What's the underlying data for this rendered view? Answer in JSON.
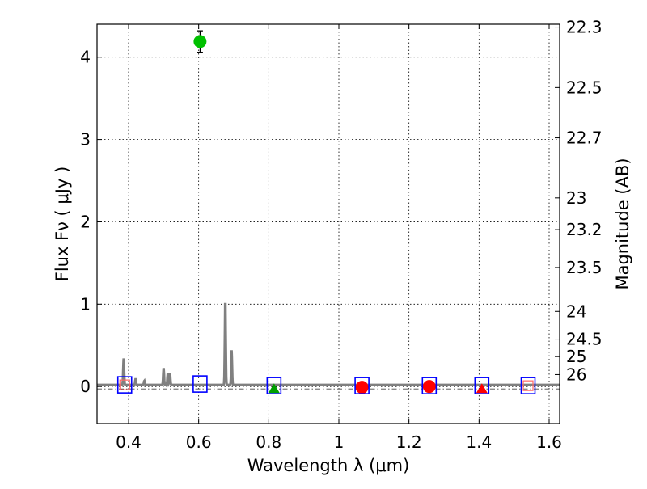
{
  "chart_data": {
    "type": "scatter",
    "xlabel": "Wavelength  λ (μm)",
    "ylabel_left": "Flux  Fν  ( μJy )",
    "ylabel_right": "Magnitude (AB)",
    "xlim": [
      0.31,
      1.63
    ],
    "ylim": [
      -0.45,
      4.4
    ],
    "x_ticks": [
      0.4,
      0.6,
      0.8,
      1.0,
      1.2,
      1.4,
      1.6
    ],
    "x_tick_labels": [
      "0.4",
      "0.6",
      "0.8",
      "1",
      "1.2",
      "1.4",
      "1.6"
    ],
    "y_ticks": [
      0,
      1,
      2,
      3,
      4
    ],
    "y_tick_labels": [
      "0",
      "1",
      "2",
      "3",
      "4"
    ],
    "mag_ticks": [
      22.3,
      22.5,
      22.7,
      23,
      23.2,
      23.5,
      24,
      24.5,
      25,
      26
    ],
    "mag_tick_labels": [
      "22.3",
      "22.5",
      "22.7",
      "23",
      "23.2",
      "23.5",
      "24",
      "24.5",
      "25",
      "26"
    ],
    "grid": true,
    "observed": [
      {
        "x": 0.604,
        "y": 4.19,
        "err": 0.13,
        "color": "#00c000",
        "marker": "circle"
      },
      {
        "x": 0.815,
        "y": -0.03,
        "err": 0.03,
        "color": "#00a000",
        "marker": "triangle"
      },
      {
        "x": 1.066,
        "y": -0.01,
        "err": 0.05,
        "color": "#ff0000",
        "marker": "circle"
      },
      {
        "x": 1.258,
        "y": 0.0,
        "err": 0.05,
        "color": "#ff0000",
        "marker": "circle"
      },
      {
        "x": 1.408,
        "y": -0.03,
        "err": 0.03,
        "color": "#ff0000",
        "marker": "triangle"
      }
    ],
    "model_photometry": [
      {
        "x": 0.389,
        "y": 0.02,
        "color": "#0000ff"
      },
      {
        "x": 0.604,
        "y": 0.03,
        "color": "#0000ff"
      },
      {
        "x": 0.815,
        "y": 0.01,
        "color": "#0000ff"
      },
      {
        "x": 1.066,
        "y": 0.01,
        "color": "#0000ff"
      },
      {
        "x": 1.258,
        "y": 0.01,
        "color": "#0000ff"
      },
      {
        "x": 1.408,
        "y": 0.01,
        "color": "#0000ff"
      },
      {
        "x": 1.54,
        "y": 0.01,
        "color": "#0000ff"
      }
    ],
    "extra_squares": [
      {
        "x": 0.389,
        "y": 0.02,
        "color": "#ff6666"
      },
      {
        "x": 1.54,
        "y": 0.01,
        "color": "#ff6666"
      }
    ],
    "spectrum": {
      "color": "#808080",
      "baseline": 0.02,
      "lines": [
        {
          "x": 0.386,
          "peak": 0.32
        },
        {
          "x": 0.42,
          "peak": 0.07
        },
        {
          "x": 0.445,
          "peak": 0.05
        },
        {
          "x": 0.5,
          "peak": 0.2
        },
        {
          "x": 0.512,
          "peak": 0.14
        },
        {
          "x": 0.518,
          "peak": 0.14
        },
        {
          "x": 0.676,
          "peak": 1.03
        },
        {
          "x": 0.694,
          "peak": 0.42
        }
      ]
    },
    "zero_line_style": "dash-dot"
  }
}
